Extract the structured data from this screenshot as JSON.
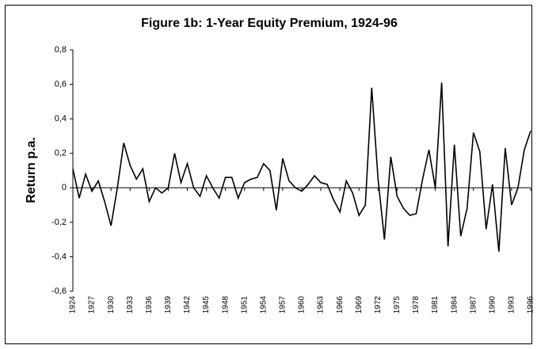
{
  "chart_data": {
    "type": "line",
    "title": "Figure 1b: 1-Year Equity Premium, 1924-96",
    "ylabel": "Return p.a.",
    "x": [
      1924,
      1925,
      1926,
      1927,
      1928,
      1929,
      1930,
      1931,
      1932,
      1933,
      1934,
      1935,
      1936,
      1937,
      1938,
      1939,
      1940,
      1941,
      1942,
      1943,
      1944,
      1945,
      1946,
      1947,
      1948,
      1949,
      1950,
      1951,
      1952,
      1953,
      1954,
      1955,
      1956,
      1957,
      1958,
      1959,
      1960,
      1961,
      1962,
      1963,
      1964,
      1965,
      1966,
      1967,
      1968,
      1969,
      1970,
      1971,
      1972,
      1973,
      1974,
      1975,
      1976,
      1977,
      1978,
      1979,
      1980,
      1981,
      1982,
      1983,
      1984,
      1985,
      1986,
      1987,
      1988,
      1989,
      1990,
      1991,
      1992,
      1993,
      1994,
      1995,
      1996
    ],
    "values": [
      0.11,
      -0.06,
      0.08,
      -0.02,
      0.04,
      -0.08,
      -0.22,
      0.0,
      0.26,
      0.13,
      0.05,
      0.11,
      -0.08,
      0.0,
      -0.03,
      0.0,
      0.2,
      0.03,
      0.14,
      0.0,
      -0.05,
      0.07,
      0.0,
      -0.06,
      0.06,
      0.06,
      -0.06,
      0.03,
      0.05,
      0.06,
      0.14,
      0.1,
      -0.13,
      0.17,
      0.04,
      0.0,
      -0.02,
      0.02,
      0.07,
      0.03,
      0.02,
      -0.07,
      -0.14,
      0.04,
      -0.03,
      -0.16,
      -0.1,
      0.58,
      0.05,
      -0.3,
      0.18,
      -0.05,
      -0.12,
      -0.16,
      -0.15,
      0.05,
      0.22,
      0.0,
      0.61,
      -0.34,
      0.25,
      -0.28,
      -0.12,
      0.32,
      0.21,
      -0.24,
      0.02,
      -0.37,
      0.23,
      -0.1,
      0.0,
      0.22,
      0.33
    ],
    "color": "#000000",
    "xlim": [
      1924,
      1996
    ],
    "xticks": [
      1924,
      1927,
      1930,
      1933,
      1936,
      1939,
      1942,
      1945,
      1948,
      1951,
      1954,
      1957,
      1960,
      1963,
      1966,
      1969,
      1972,
      1975,
      1978,
      1981,
      1984,
      1987,
      1990,
      1993,
      1996
    ],
    "ylim": [
      -0.6,
      0.8
    ],
    "yticks": [
      {
        "value": 0.8,
        "label": "0,8"
      },
      {
        "value": 0.6,
        "label": "0,6"
      },
      {
        "value": 0.4,
        "label": "0,4"
      },
      {
        "value": 0.2,
        "label": "0,2"
      },
      0,
      {
        "value": -0.2,
        "label": "-0,2"
      },
      {
        "value": -0.4,
        "label": "-0,4"
      },
      {
        "value": -0.6,
        "label": "-0,6"
      }
    ],
    "grid": false
  }
}
